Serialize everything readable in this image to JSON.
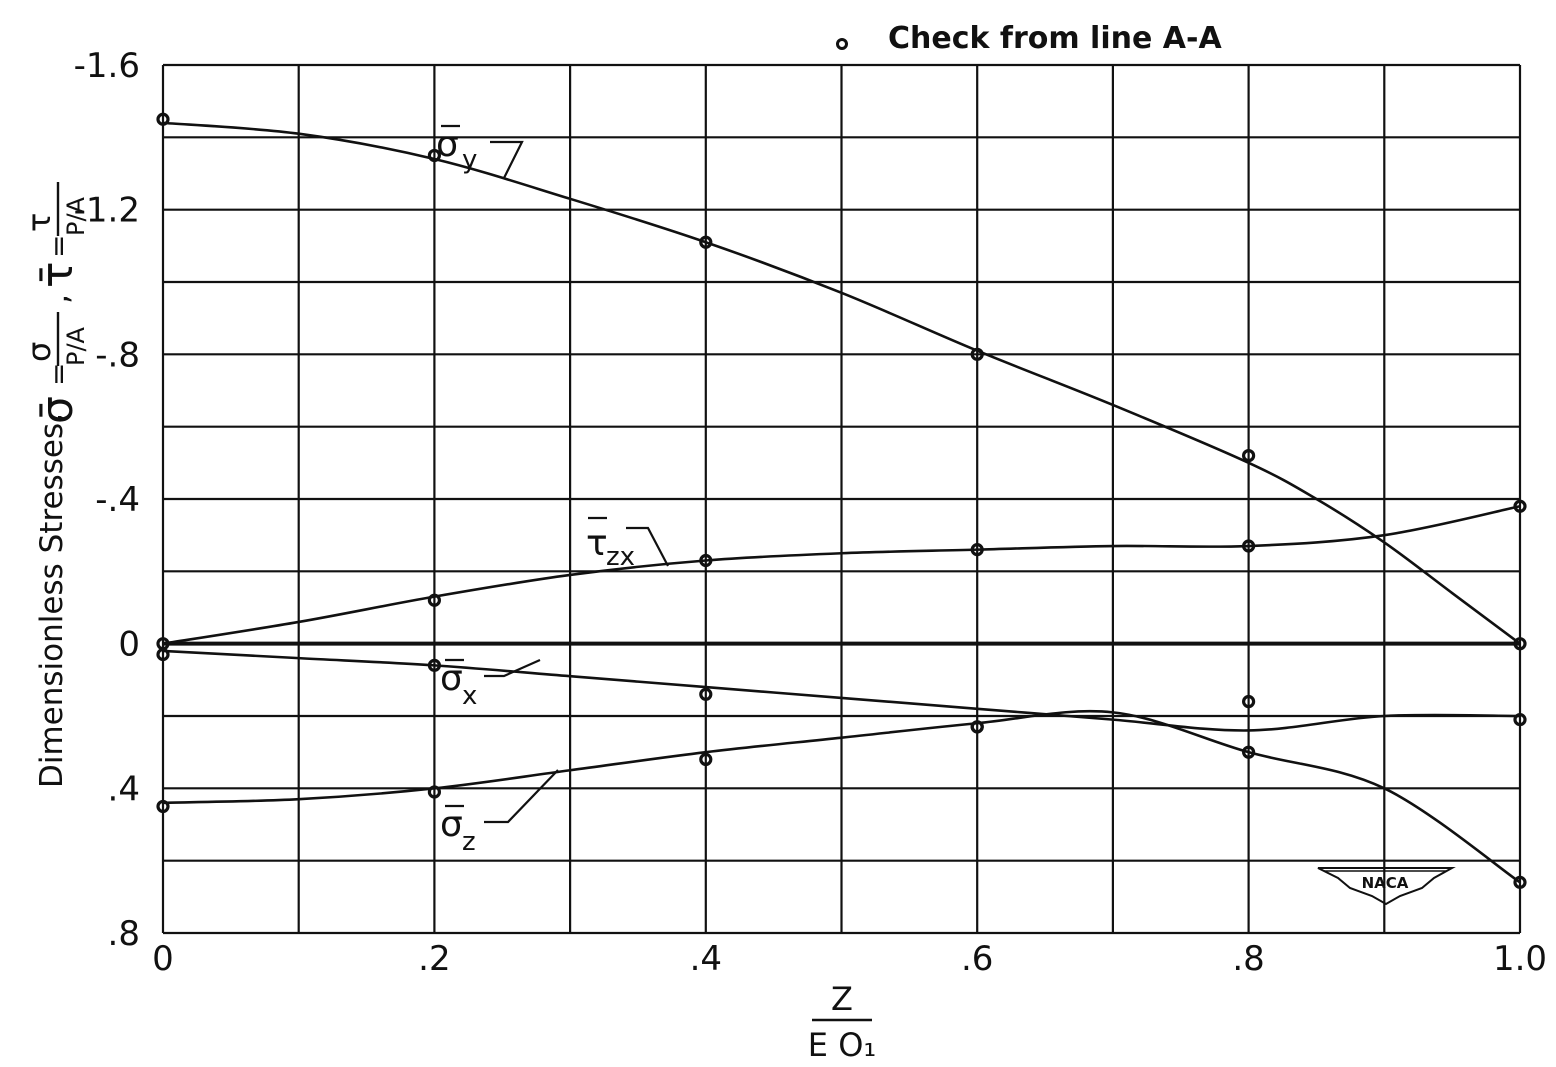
{
  "legend": {
    "marker": "o",
    "text": "Check from line A-A"
  },
  "logo_text": "NACA",
  "chart_data": {
    "type": "line",
    "x_tick_labels": [
      "0",
      ".2",
      ".4",
      ".6",
      ".8",
      "1.0"
    ],
    "y_tick_labels": [
      "-1.6",
      "-1.2",
      "-.8",
      "-.4",
      "0",
      ".4",
      ".8"
    ],
    "y_ticks": [
      -1.6,
      -1.2,
      -0.8,
      -0.4,
      0,
      0.4,
      0.8
    ],
    "xlim": [
      0,
      1.0
    ],
    "ylim": [
      -1.6,
      0.8
    ],
    "y_inverted": true,
    "grid": true,
    "xlabel": {
      "num": "Z",
      "den": "E O₁"
    },
    "ylabel": {
      "text": "Dimensionless Stresses,",
      "sigma_num": "σ",
      "sigma_den": "P/A",
      "tau_num": "τ",
      "tau_den": "P/A"
    },
    "series": [
      {
        "name": "σ̄y",
        "x": [
          0,
          0.1,
          0.2,
          0.3,
          0.4,
          0.5,
          0.6,
          0.7,
          0.8,
          0.85,
          0.9,
          0.95,
          1.0
        ],
        "y": [
          -1.44,
          -1.41,
          -1.34,
          -1.23,
          -1.11,
          -0.97,
          -0.81,
          -0.66,
          -0.5,
          -0.4,
          -0.28,
          -0.14,
          0.0
        ],
        "check_points": {
          "x": [
            0,
            0.2,
            0.4,
            0.6,
            0.8,
            1.0
          ],
          "y": [
            -1.45,
            -1.35,
            -1.11,
            -0.8,
            -0.52,
            0.0
          ]
        }
      },
      {
        "name": "τ̄zx",
        "x": [
          0,
          0.1,
          0.2,
          0.3,
          0.4,
          0.5,
          0.6,
          0.7,
          0.8,
          0.9,
          1.0
        ],
        "y": [
          0.0,
          -0.06,
          -0.13,
          -0.19,
          -0.23,
          -0.25,
          -0.26,
          -0.27,
          -0.27,
          -0.3,
          -0.38
        ],
        "check_points": {
          "x": [
            0,
            0.2,
            0.4,
            0.6,
            0.8,
            1.0
          ],
          "y": [
            0.0,
            -0.12,
            -0.23,
            -0.26,
            -0.27,
            -0.38
          ]
        }
      },
      {
        "name": "σ̄x",
        "x": [
          0,
          0.1,
          0.2,
          0.3,
          0.4,
          0.5,
          0.6,
          0.7,
          0.8,
          0.9,
          1.0
        ],
        "y": [
          0.02,
          0.04,
          0.06,
          0.09,
          0.12,
          0.15,
          0.18,
          0.21,
          0.24,
          0.2,
          0.2
        ],
        "check_points": {
          "x": [
            0,
            0.2,
            0.4,
            0.6,
            0.8,
            1.0
          ],
          "y": [
            0.03,
            0.06,
            0.14,
            0.23,
            0.16,
            0.21
          ]
        }
      },
      {
        "name": "σ̄z",
        "x": [
          0,
          0.1,
          0.2,
          0.3,
          0.4,
          0.5,
          0.6,
          0.7,
          0.8,
          0.9,
          1.0
        ],
        "y": [
          0.44,
          0.43,
          0.4,
          0.35,
          0.3,
          0.26,
          0.22,
          0.19,
          0.3,
          0.4,
          0.66
        ],
        "check_points": {
          "x": [
            0,
            0.2,
            0.4,
            0.6,
            0.8,
            1.0
          ],
          "y": [
            0.45,
            0.41,
            0.32,
            0.23,
            0.3,
            0.66
          ]
        }
      }
    ]
  }
}
